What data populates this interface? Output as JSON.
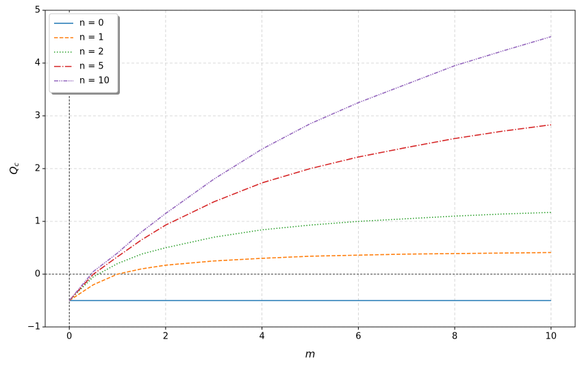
{
  "chart_data": {
    "type": "line",
    "xlabel": "m",
    "ylabel": "Q",
    "ylabel_sub": "c",
    "x": [
      0,
      0.5,
      1,
      1.5,
      2,
      3,
      4,
      5,
      6,
      7,
      8,
      9,
      10
    ],
    "series": [
      {
        "name": "n = 0",
        "color": "#1f77b4",
        "linestyle": "solid",
        "values": [
          -0.5,
          -0.5,
          -0.5,
          -0.5,
          -0.5,
          -0.5,
          -0.5,
          -0.5,
          -0.5,
          -0.5,
          -0.5,
          -0.5,
          -0.5
        ]
      },
      {
        "name": "n = 1",
        "color": "#ff7f0e",
        "linestyle": "dashed",
        "values": [
          -0.5,
          -0.2,
          0.0,
          0.1,
          0.17,
          0.25,
          0.3,
          0.34,
          0.36,
          0.38,
          0.39,
          0.4,
          0.41
        ]
      },
      {
        "name": "n = 2",
        "color": "#2ca02c",
        "linestyle": "dotted",
        "values": [
          -0.5,
          -0.05,
          0.2,
          0.38,
          0.5,
          0.7,
          0.84,
          0.93,
          1.0,
          1.05,
          1.1,
          1.14,
          1.17
        ]
      },
      {
        "name": "n = 5",
        "color": "#d62728",
        "linestyle": "dashdot",
        "values": [
          -0.5,
          0.0,
          0.33,
          0.65,
          0.93,
          1.37,
          1.73,
          2.0,
          2.22,
          2.4,
          2.57,
          2.71,
          2.83
        ]
      },
      {
        "name": "n = 10",
        "color": "#9467bd",
        "linestyle": "dashdotdot",
        "values": [
          -0.5,
          0.05,
          0.4,
          0.8,
          1.15,
          1.8,
          2.37,
          2.85,
          3.25,
          3.6,
          3.95,
          4.23,
          4.5
        ]
      }
    ],
    "xlim": [
      -0.5,
      10.5
    ],
    "ylim": [
      -1,
      5
    ],
    "xticks": [
      0,
      2,
      4,
      6,
      8,
      10
    ],
    "yticks": [
      {
        "value": -1,
        "label": "−1"
      },
      0,
      1,
      2,
      3,
      4,
      5
    ],
    "hlines": [
      0
    ],
    "vlines": [
      0
    ],
    "grid": true,
    "legend": "upper-left"
  }
}
